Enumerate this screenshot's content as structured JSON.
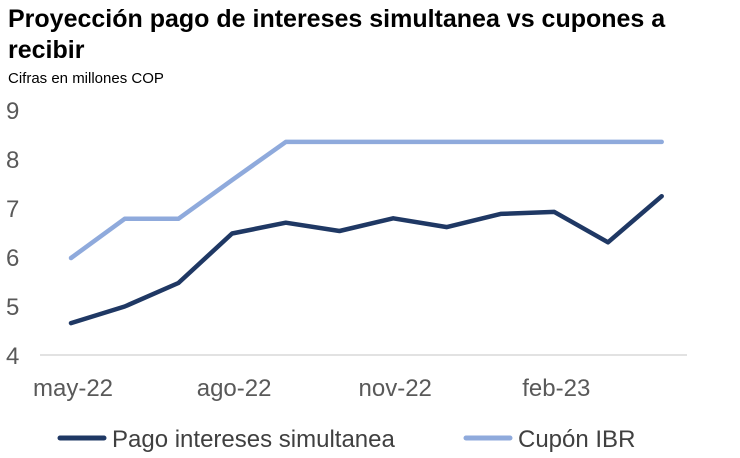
{
  "chart_data": {
    "type": "line",
    "title": "Proyección pago de intereses simultanea vs cupones a recibir",
    "subtitle": "Cifras en millones COP",
    "ylim": [
      4,
      9
    ],
    "yticks": [
      4,
      5,
      6,
      7,
      8,
      9
    ],
    "x": [
      "may-22",
      "jun-22",
      "jul-22",
      "ago-22",
      "sep-22",
      "oct-22",
      "nov-22",
      "dic-22",
      "ene-23",
      "feb-23",
      "mar-23",
      "abr-23"
    ],
    "xtick_labels": [
      "may-22",
      "ago-22",
      "nov-22",
      "feb-23"
    ],
    "grid": false,
    "legend_position": "bottom",
    "series": [
      {
        "name": "Pago intereses simultanea",
        "color": "#1f3864",
        "values": [
          4.65,
          4.99,
          5.47,
          6.48,
          6.7,
          6.53,
          6.79,
          6.61,
          6.88,
          6.92,
          6.3,
          7.24
        ]
      },
      {
        "name": "Cupón IBR",
        "color": "#8faadc",
        "values": [
          5.98,
          6.78,
          6.78,
          7.57,
          8.35,
          8.35,
          8.35,
          8.35,
          8.35,
          8.35,
          8.35,
          8.35
        ]
      }
    ]
  }
}
